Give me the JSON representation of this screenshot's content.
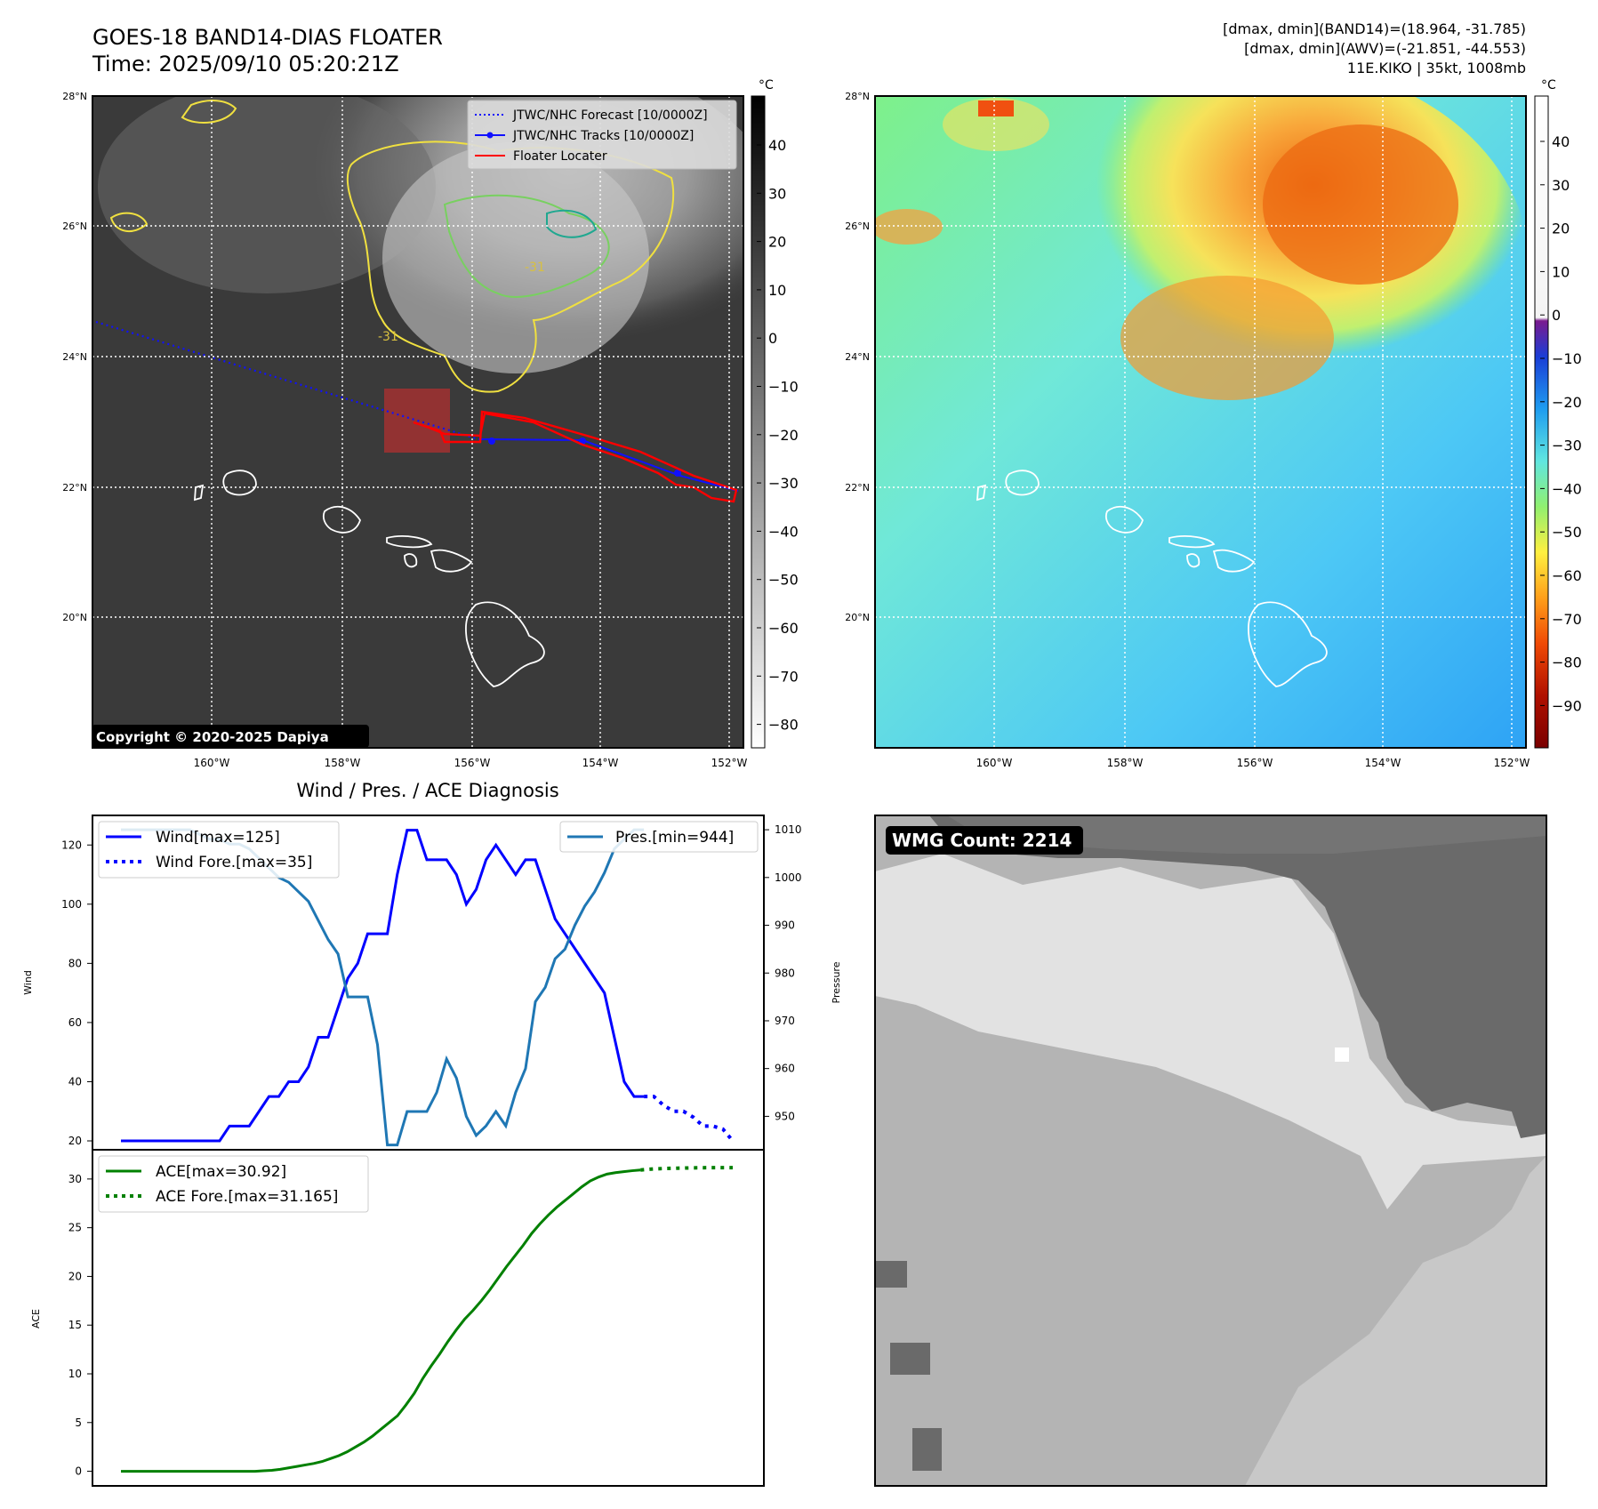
{
  "header": {
    "title": "GOES-18 BAND14-DIAS FLOATER",
    "time": "Time: 2025/09/10 05:20:21Z",
    "band14_range": "[dmax, dmin](BAND14)=(18.964, -31.785)",
    "awv_range": "[dmax, dmin](AWV)=(-21.851, -44.553)",
    "storm": "11E.KIKO | 35kt, 1008mb"
  },
  "map": {
    "lat_labels": [
      "28°N",
      "26°N",
      "24°N",
      "22°N",
      "20°N"
    ],
    "lon_labels": [
      "160°W",
      "158°W",
      "156°W",
      "154°W",
      "152°W"
    ],
    "legend": [
      "JTWC/NHC Forecast [10/0000Z]",
      "JTWC/NHC Tracks [10/0000Z]",
      "Floater Locater"
    ],
    "contour_labels": [
      "-31",
      "-31"
    ],
    "copyright": "Copyright © 2020-2025 Dapiya",
    "unit": "°C"
  },
  "colorbar_ir": {
    "ticks": [
      "40",
      "30",
      "20",
      "10",
      "0",
      "−10",
      "−20",
      "−30",
      "−40",
      "−50",
      "−60",
      "−70",
      "−80"
    ]
  },
  "colorbar_wv": {
    "ticks": [
      "40",
      "30",
      "20",
      "10",
      "0",
      "−10",
      "−20",
      "−30",
      "−40",
      "−50",
      "−60",
      "−70",
      "−80",
      "−90"
    ]
  },
  "wmg": {
    "label": "WMG Count: 2214"
  },
  "chart_data": [
    {
      "type": "line",
      "title": "Wind / Pres. / ACE Diagnosis",
      "ylabel": "Wind",
      "ylim": [
        17,
        130
      ],
      "yticks": [
        20,
        40,
        60,
        80,
        100,
        120
      ],
      "legend": [
        "Wind[max=125]",
        "Wind Fore.[max=35]"
      ],
      "wind": [
        20,
        20,
        20,
        20,
        20,
        20,
        20,
        20,
        20,
        20,
        20,
        25,
        25,
        25,
        30,
        35,
        35,
        40,
        40,
        45,
        55,
        55,
        65,
        75,
        80,
        90,
        90,
        90,
        110,
        125,
        125,
        115,
        115,
        115,
        110,
        100,
        105,
        115,
        120,
        115,
        110,
        115,
        115,
        105,
        95,
        90,
        85,
        80,
        75,
        70,
        55,
        40,
        35,
        35
      ],
      "wind_forecast": [
        35,
        35,
        32,
        30,
        30,
        28,
        25,
        25,
        24,
        20
      ],
      "pressure_ylabel": "Pressure",
      "pressure_ylim": [
        943,
        1013
      ],
      "pressure_yticks": [
        950,
        960,
        970,
        980,
        990,
        1000,
        1010
      ],
      "pressure_legend": "Pres.[min=944]",
      "pressure": [
        1010,
        1010,
        1010,
        1010,
        1010,
        1010,
        1010,
        1010,
        1009,
        1008,
        1008,
        1007,
        1007,
        1006,
        1004,
        1002,
        1000,
        999,
        997,
        995,
        991,
        987,
        984,
        975,
        975,
        975,
        965,
        944,
        944,
        951,
        951,
        951,
        955,
        962,
        958,
        950,
        946,
        948,
        951,
        948,
        955,
        960,
        974,
        977,
        983,
        985,
        990,
        994,
        997,
        1001,
        1006,
        1008,
        1010,
        1010
      ],
      "ace_ylabel": "ACE",
      "ace_ylim": [
        -1.5,
        33
      ],
      "ace_yticks": [
        0,
        5,
        10,
        15,
        20,
        25,
        30
      ],
      "ace_legend": [
        "ACE[max=30.92]",
        "ACE Fore.[max=31.165]"
      ],
      "ace": [
        0,
        0,
        0,
        0,
        0,
        0,
        0,
        0,
        0,
        0,
        0,
        0,
        0,
        0,
        0,
        0,
        0,
        0.05,
        0.1,
        0.2,
        0.35,
        0.5,
        0.65,
        0.8,
        1.0,
        1.3,
        1.6,
        2.0,
        2.5,
        3.0,
        3.6,
        4.3,
        5.0,
        5.7,
        6.8,
        8.0,
        9.5,
        10.8,
        12.0,
        13.3,
        14.5,
        15.6,
        16.5,
        17.5,
        18.6,
        19.8,
        21.0,
        22.1,
        23.2,
        24.4,
        25.4,
        26.3,
        27.1,
        27.8,
        28.5,
        29.2,
        29.8,
        30.2,
        30.5,
        30.65,
        30.75,
        30.85,
        30.92
      ],
      "ace_forecast": [
        30.92,
        31.0,
        31.05,
        31.08,
        31.1,
        31.12,
        31.14,
        31.15,
        31.16,
        31.165,
        31.165,
        31.165
      ]
    }
  ]
}
